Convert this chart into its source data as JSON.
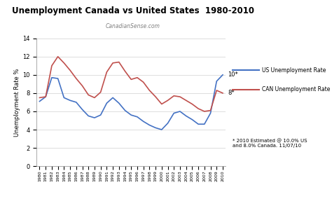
{
  "years": [
    1980,
    1981,
    1982,
    1983,
    1984,
    1985,
    1986,
    1987,
    1988,
    1989,
    1990,
    1991,
    1992,
    1993,
    1994,
    1995,
    1996,
    1997,
    1998,
    1999,
    2000,
    2001,
    2002,
    2003,
    2004,
    2005,
    2006,
    2007,
    2008,
    2009,
    2010
  ],
  "us_rate": [
    7.1,
    7.6,
    9.7,
    9.6,
    7.5,
    7.2,
    7.0,
    6.2,
    5.5,
    5.3,
    5.6,
    6.9,
    7.5,
    6.9,
    6.1,
    5.6,
    5.4,
    4.9,
    4.5,
    4.2,
    4.0,
    4.7,
    5.8,
    6.0,
    5.5,
    5.1,
    4.6,
    4.6,
    5.8,
    9.3,
    10.0
  ],
  "can_rate": [
    7.5,
    7.6,
    11.0,
    12.0,
    11.3,
    10.5,
    9.6,
    8.8,
    7.8,
    7.5,
    8.1,
    10.3,
    11.3,
    11.4,
    10.4,
    9.5,
    9.7,
    9.2,
    8.3,
    7.6,
    6.8,
    7.2,
    7.7,
    7.6,
    7.2,
    6.8,
    6.3,
    6.0,
    6.1,
    8.3,
    8.0
  ],
  "title": "Unemployment Canada vs United States  1980-2010",
  "subtitle": "CanadianSense.com",
  "ylabel": "Unemployment Rate %",
  "us_color": "#4472C4",
  "can_color": "#C0504D",
  "ylim": [
    0,
    14
  ],
  "yticks": [
    0,
    2,
    4,
    6,
    8,
    10,
    12,
    14
  ],
  "annotation_note": "* 2010 Estimated @ 10.0% US\nand 8.0% Canada. 11/07/10",
  "legend_us": "US Unemployment Rate",
  "legend_can": "CAN Unemployment Rate"
}
